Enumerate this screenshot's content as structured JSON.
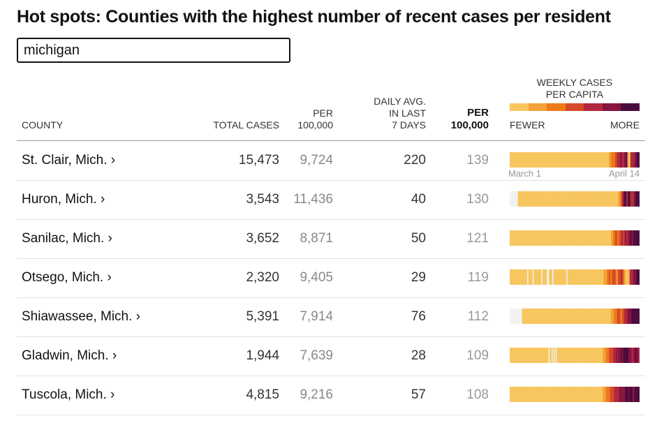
{
  "title": "Hot spots: Counties with the highest number of recent cases per resident",
  "search": {
    "value": "michigan"
  },
  "headers": {
    "county": "COUNTY",
    "total_cases": "TOTAL CASES",
    "per_100k_line1": "PER",
    "per_100k_line2": "100,000",
    "daily_avg_line1": "DAILY AVG.",
    "daily_avg_line2": "IN LAST",
    "daily_avg_line3": "7 DAYS",
    "daily_per_line1": "PER",
    "daily_per_line2": "100,000"
  },
  "legend": {
    "title_line1": "WEEKLY CASES",
    "title_line2": "PER CAPITA",
    "fewer": "FEWER",
    "more": "MORE",
    "colors": [
      "#f3e3a2",
      "#f7c65f",
      "#f3a23a",
      "#ec7a17",
      "#d64a2a",
      "#b3283d",
      "#86153f",
      "#4b0c3d"
    ]
  },
  "sparkline_axis": {
    "start": "March 1",
    "end": "April 14"
  },
  "rows": [
    {
      "county": "St. Clair, Mich. ›",
      "total_cases": "15,473",
      "per_100k": "9,724",
      "daily_avg": "220",
      "daily_per_100k": "139",
      "weekly_levels": [
        1,
        1,
        1,
        1,
        1,
        1,
        1,
        1,
        1,
        1,
        1,
        1,
        1,
        1,
        1,
        1,
        1,
        1,
        1,
        1,
        1,
        1,
        1,
        1,
        1,
        1,
        1,
        1,
        1,
        1,
        1,
        1,
        1,
        1,
        1,
        1,
        1,
        1,
        1,
        1,
        1,
        1,
        1,
        1,
        1,
        1,
        1,
        1,
        1,
        1,
        1,
        1,
        1,
        1,
        1,
        1,
        1,
        1,
        1,
        1,
        1,
        1,
        1,
        1,
        1,
        1,
        1,
        1,
        1,
        1,
        1,
        1,
        1,
        1,
        1,
        1,
        1,
        1,
        1,
        1,
        1,
        1,
        1,
        1,
        1,
        1,
        1,
        1,
        1,
        1,
        1,
        1,
        1,
        1,
        1,
        1,
        1,
        2,
        2,
        3,
        3,
        3,
        3,
        4,
        4,
        5,
        5,
        5,
        6,
        6,
        5,
        5,
        6,
        6,
        7,
        2,
        1,
        1,
        5,
        5,
        5,
        5,
        6,
        6,
        7,
        7,
        7
      ]
    },
    {
      "county": "Huron, Mich. ›",
      "total_cases": "3,543",
      "per_100k": "11,436",
      "daily_avg": "40",
      "daily_per_100k": "130",
      "weekly_levels": [
        0,
        0,
        0,
        0,
        0,
        0,
        0,
        0,
        1,
        1,
        1,
        1,
        1,
        1,
        1,
        1,
        1,
        1,
        1,
        1,
        1,
        1,
        1,
        1,
        1,
        1,
        1,
        1,
        1,
        1,
        1,
        1,
        1,
        1,
        1,
        1,
        1,
        1,
        1,
        1,
        1,
        1,
        1,
        1,
        1,
        1,
        1,
        1,
        1,
        1,
        1,
        1,
        1,
        1,
        1,
        1,
        1,
        1,
        1,
        1,
        1,
        1,
        1,
        1,
        1,
        1,
        1,
        1,
        1,
        1,
        1,
        1,
        1,
        1,
        1,
        1,
        1,
        1,
        1,
        1,
        1,
        1,
        1,
        1,
        1,
        1,
        1,
        1,
        1,
        1,
        1,
        1,
        1,
        1,
        1,
        1,
        1,
        1,
        1,
        1,
        1,
        1,
        1,
        1,
        1,
        1,
        1,
        2,
        2,
        3,
        4,
        5,
        6,
        7,
        7,
        5,
        6,
        7,
        7,
        4,
        6,
        4,
        6,
        6,
        7,
        7,
        7,
        7
      ]
    },
    {
      "county": "Sanilac, Mich. ›",
      "total_cases": "3,652",
      "per_100k": "8,871",
      "daily_avg": "50",
      "daily_per_100k": "121",
      "weekly_levels": [
        1,
        1,
        1,
        1,
        1,
        1,
        1,
        1,
        1,
        1,
        1,
        1,
        1,
        1,
        1,
        1,
        1,
        1,
        1,
        1,
        1,
        1,
        1,
        1,
        1,
        1,
        1,
        1,
        1,
        1,
        1,
        1,
        1,
        1,
        1,
        1,
        1,
        1,
        1,
        1,
        1,
        1,
        1,
        1,
        1,
        1,
        1,
        1,
        1,
        1,
        1,
        1,
        1,
        1,
        1,
        1,
        1,
        1,
        1,
        1,
        1,
        1,
        1,
        1,
        1,
        1,
        1,
        1,
        1,
        1,
        1,
        1,
        1,
        1,
        1,
        1,
        1,
        1,
        1,
        1,
        1,
        1,
        1,
        1,
        1,
        1,
        1,
        1,
        1,
        1,
        1,
        1,
        1,
        1,
        1,
        1,
        1,
        1,
        1,
        2,
        2,
        3,
        3,
        4,
        4,
        3,
        3,
        4,
        4,
        5,
        5,
        4,
        5,
        6,
        5,
        5,
        6,
        6,
        7,
        6,
        6,
        7,
        7,
        7,
        7,
        7,
        7
      ]
    },
    {
      "county": "Otsego, Mich. ›",
      "total_cases": "2,320",
      "per_100k": "9,405",
      "daily_avg": "29",
      "daily_per_100k": "119",
      "weekly_levels": [
        1,
        1,
        1,
        1,
        1,
        1,
        1,
        1,
        1,
        1,
        1,
        1,
        1,
        1,
        1,
        1,
        0,
        1,
        1,
        1,
        1,
        0,
        1,
        1,
        1,
        1,
        1,
        1,
        1,
        0,
        1,
        1,
        1,
        1,
        0,
        0,
        1,
        1,
        1,
        0,
        1,
        1,
        1,
        1,
        1,
        1,
        1,
        1,
        1,
        1,
        1,
        1,
        0,
        1,
        1,
        1,
        1,
        1,
        1,
        1,
        1,
        1,
        1,
        1,
        1,
        1,
        1,
        1,
        1,
        1,
        1,
        1,
        1,
        1,
        1,
        1,
        1,
        1,
        1,
        1,
        1,
        1,
        1,
        1,
        1,
        1,
        2,
        2,
        2,
        3,
        3,
        4,
        3,
        3,
        4,
        4,
        4,
        3,
        2,
        4,
        4,
        4,
        5,
        4,
        3,
        2,
        1,
        1,
        1,
        2,
        5,
        5,
        5,
        6,
        6,
        6,
        7,
        7,
        7
      ]
    },
    {
      "county": "Shiawassee, Mich. ›",
      "total_cases": "5,391",
      "per_100k": "7,914",
      "daily_avg": "76",
      "daily_per_100k": "112",
      "weekly_levels": [
        0,
        0,
        0,
        0,
        0,
        0,
        0,
        0,
        0,
        0,
        0,
        0,
        1,
        1,
        1,
        1,
        1,
        1,
        1,
        1,
        1,
        1,
        1,
        1,
        1,
        1,
        1,
        1,
        1,
        1,
        1,
        1,
        1,
        1,
        1,
        1,
        1,
        1,
        1,
        1,
        1,
        1,
        1,
        1,
        1,
        1,
        1,
        1,
        1,
        1,
        1,
        1,
        1,
        1,
        1,
        1,
        1,
        1,
        1,
        1,
        1,
        1,
        1,
        1,
        1,
        1,
        1,
        1,
        1,
        1,
        1,
        1,
        1,
        1,
        1,
        1,
        1,
        1,
        1,
        1,
        1,
        1,
        1,
        1,
        1,
        1,
        1,
        1,
        1,
        1,
        1,
        1,
        1,
        1,
        1,
        1,
        1,
        1,
        1,
        2,
        2,
        2,
        3,
        3,
        3,
        4,
        4,
        4,
        3,
        3,
        4,
        4,
        5,
        5,
        5,
        6,
        6,
        6,
        6,
        7,
        7,
        7,
        7,
        7,
        7,
        7,
        7
      ]
    },
    {
      "county": "Gladwin, Mich. ›",
      "total_cases": "1,944",
      "per_100k": "7,639",
      "daily_avg": "28",
      "daily_per_100k": "109",
      "weekly_levels": [
        1,
        1,
        1,
        1,
        1,
        1,
        1,
        1,
        1,
        1,
        1,
        1,
        1,
        1,
        1,
        1,
        1,
        1,
        1,
        1,
        1,
        1,
        1,
        1,
        1,
        1,
        1,
        1,
        1,
        1,
        1,
        1,
        1,
        1,
        1,
        1,
        1,
        1,
        0,
        1,
        1,
        0,
        1,
        0,
        1,
        0,
        1,
        1,
        1,
        1,
        1,
        1,
        1,
        1,
        1,
        1,
        1,
        1,
        1,
        1,
        1,
        1,
        1,
        1,
        1,
        1,
        1,
        1,
        1,
        1,
        1,
        1,
        1,
        1,
        1,
        1,
        1,
        1,
        1,
        1,
        1,
        1,
        1,
        1,
        1,
        1,
        1,
        1,
        1,
        1,
        1,
        2,
        2,
        2,
        3,
        3,
        3,
        4,
        4,
        4,
        4,
        5,
        5,
        5,
        6,
        5,
        6,
        6,
        6,
        7,
        6,
        7,
        7,
        7,
        7,
        7,
        6,
        6,
        6,
        5,
        5,
        6,
        6,
        7,
        6,
        6,
        5
      ]
    },
    {
      "county": "Tuscola, Mich. ›",
      "total_cases": "4,815",
      "per_100k": "9,216",
      "daily_avg": "57",
      "daily_per_100k": "108",
      "weekly_levels": [
        1,
        1,
        1,
        1,
        1,
        1,
        1,
        1,
        1,
        1,
        1,
        1,
        1,
        1,
        1,
        1,
        1,
        1,
        1,
        1,
        1,
        1,
        1,
        1,
        1,
        1,
        1,
        1,
        1,
        1,
        1,
        1,
        1,
        1,
        1,
        1,
        1,
        1,
        1,
        1,
        1,
        1,
        1,
        1,
        1,
        1,
        1,
        1,
        1,
        1,
        1,
        1,
        1,
        1,
        1,
        1,
        1,
        1,
        1,
        1,
        1,
        1,
        1,
        1,
        1,
        1,
        1,
        1,
        1,
        1,
        1,
        1,
        1,
        1,
        1,
        1,
        1,
        1,
        1,
        1,
        1,
        1,
        1,
        1,
        1,
        1,
        1,
        1,
        1,
        1,
        1,
        2,
        2,
        2,
        3,
        3,
        3,
        3,
        4,
        4,
        4,
        4,
        5,
        5,
        5,
        5,
        5,
        6,
        6,
        6,
        6,
        6,
        6,
        7,
        7,
        7,
        6,
        7,
        7,
        7,
        6,
        6,
        7,
        7,
        7,
        7,
        7
      ]
    }
  ]
}
